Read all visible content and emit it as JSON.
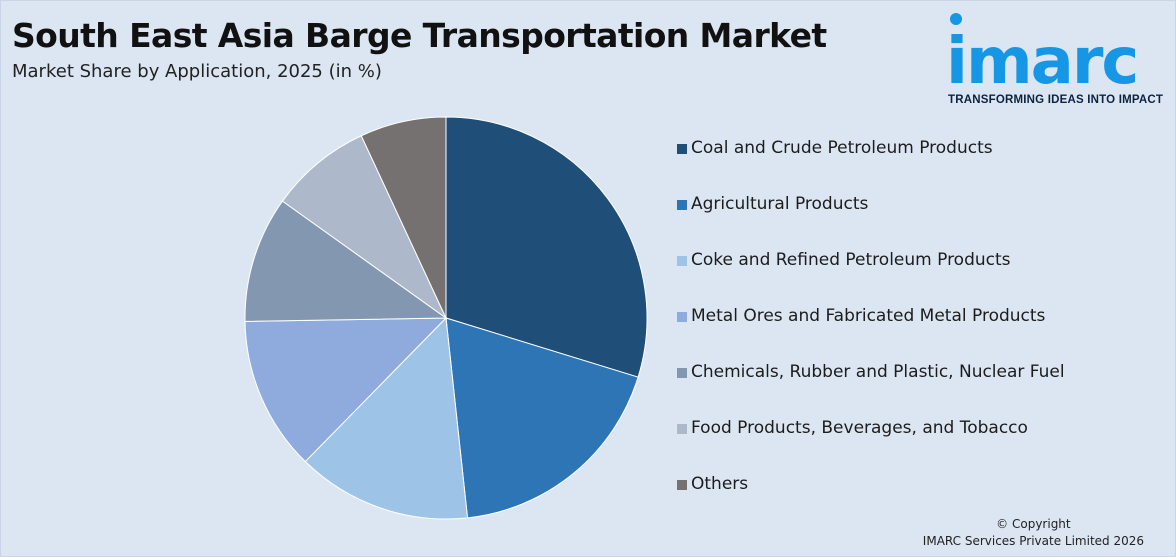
{
  "header": {
    "title": "South East Asia Barge Transportation Market",
    "subtitle": "Market Share by Application, 2025 (in %)"
  },
  "logo": {
    "wordmark": "imarc",
    "tagline": "TRANSFORMING IDEAS INTO IMPACT"
  },
  "chart_data": {
    "type": "pie",
    "title": "South East Asia Barge Transportation Market",
    "subtitle": "Market Share by Application, 2025 (in %)",
    "legend_position": "right",
    "categories": [
      "Coal and Crude Petroleum Products",
      "Agricultural Products",
      "Coke and Refined Petroleum Products",
      "Metal Ores and Fabricated Metal Products",
      "Chemicals, Rubber and Plastic, Nuclear Fuel",
      "Food Products, Beverages, and Tobacco",
      "Others"
    ],
    "values": [
      30.5,
      19.0,
      14.4,
      12.7,
      10.4,
      8.4,
      7.1
    ],
    "colors": [
      "#1f4e79",
      "#2e75b6",
      "#9dc3e6",
      "#8faadc",
      "#8497b0",
      "#adb9ca",
      "#767171"
    ]
  },
  "footer": {
    "copyright_line1": "© Copyright",
    "copyright_line2": "IMARC Services Private Limited 2026"
  }
}
